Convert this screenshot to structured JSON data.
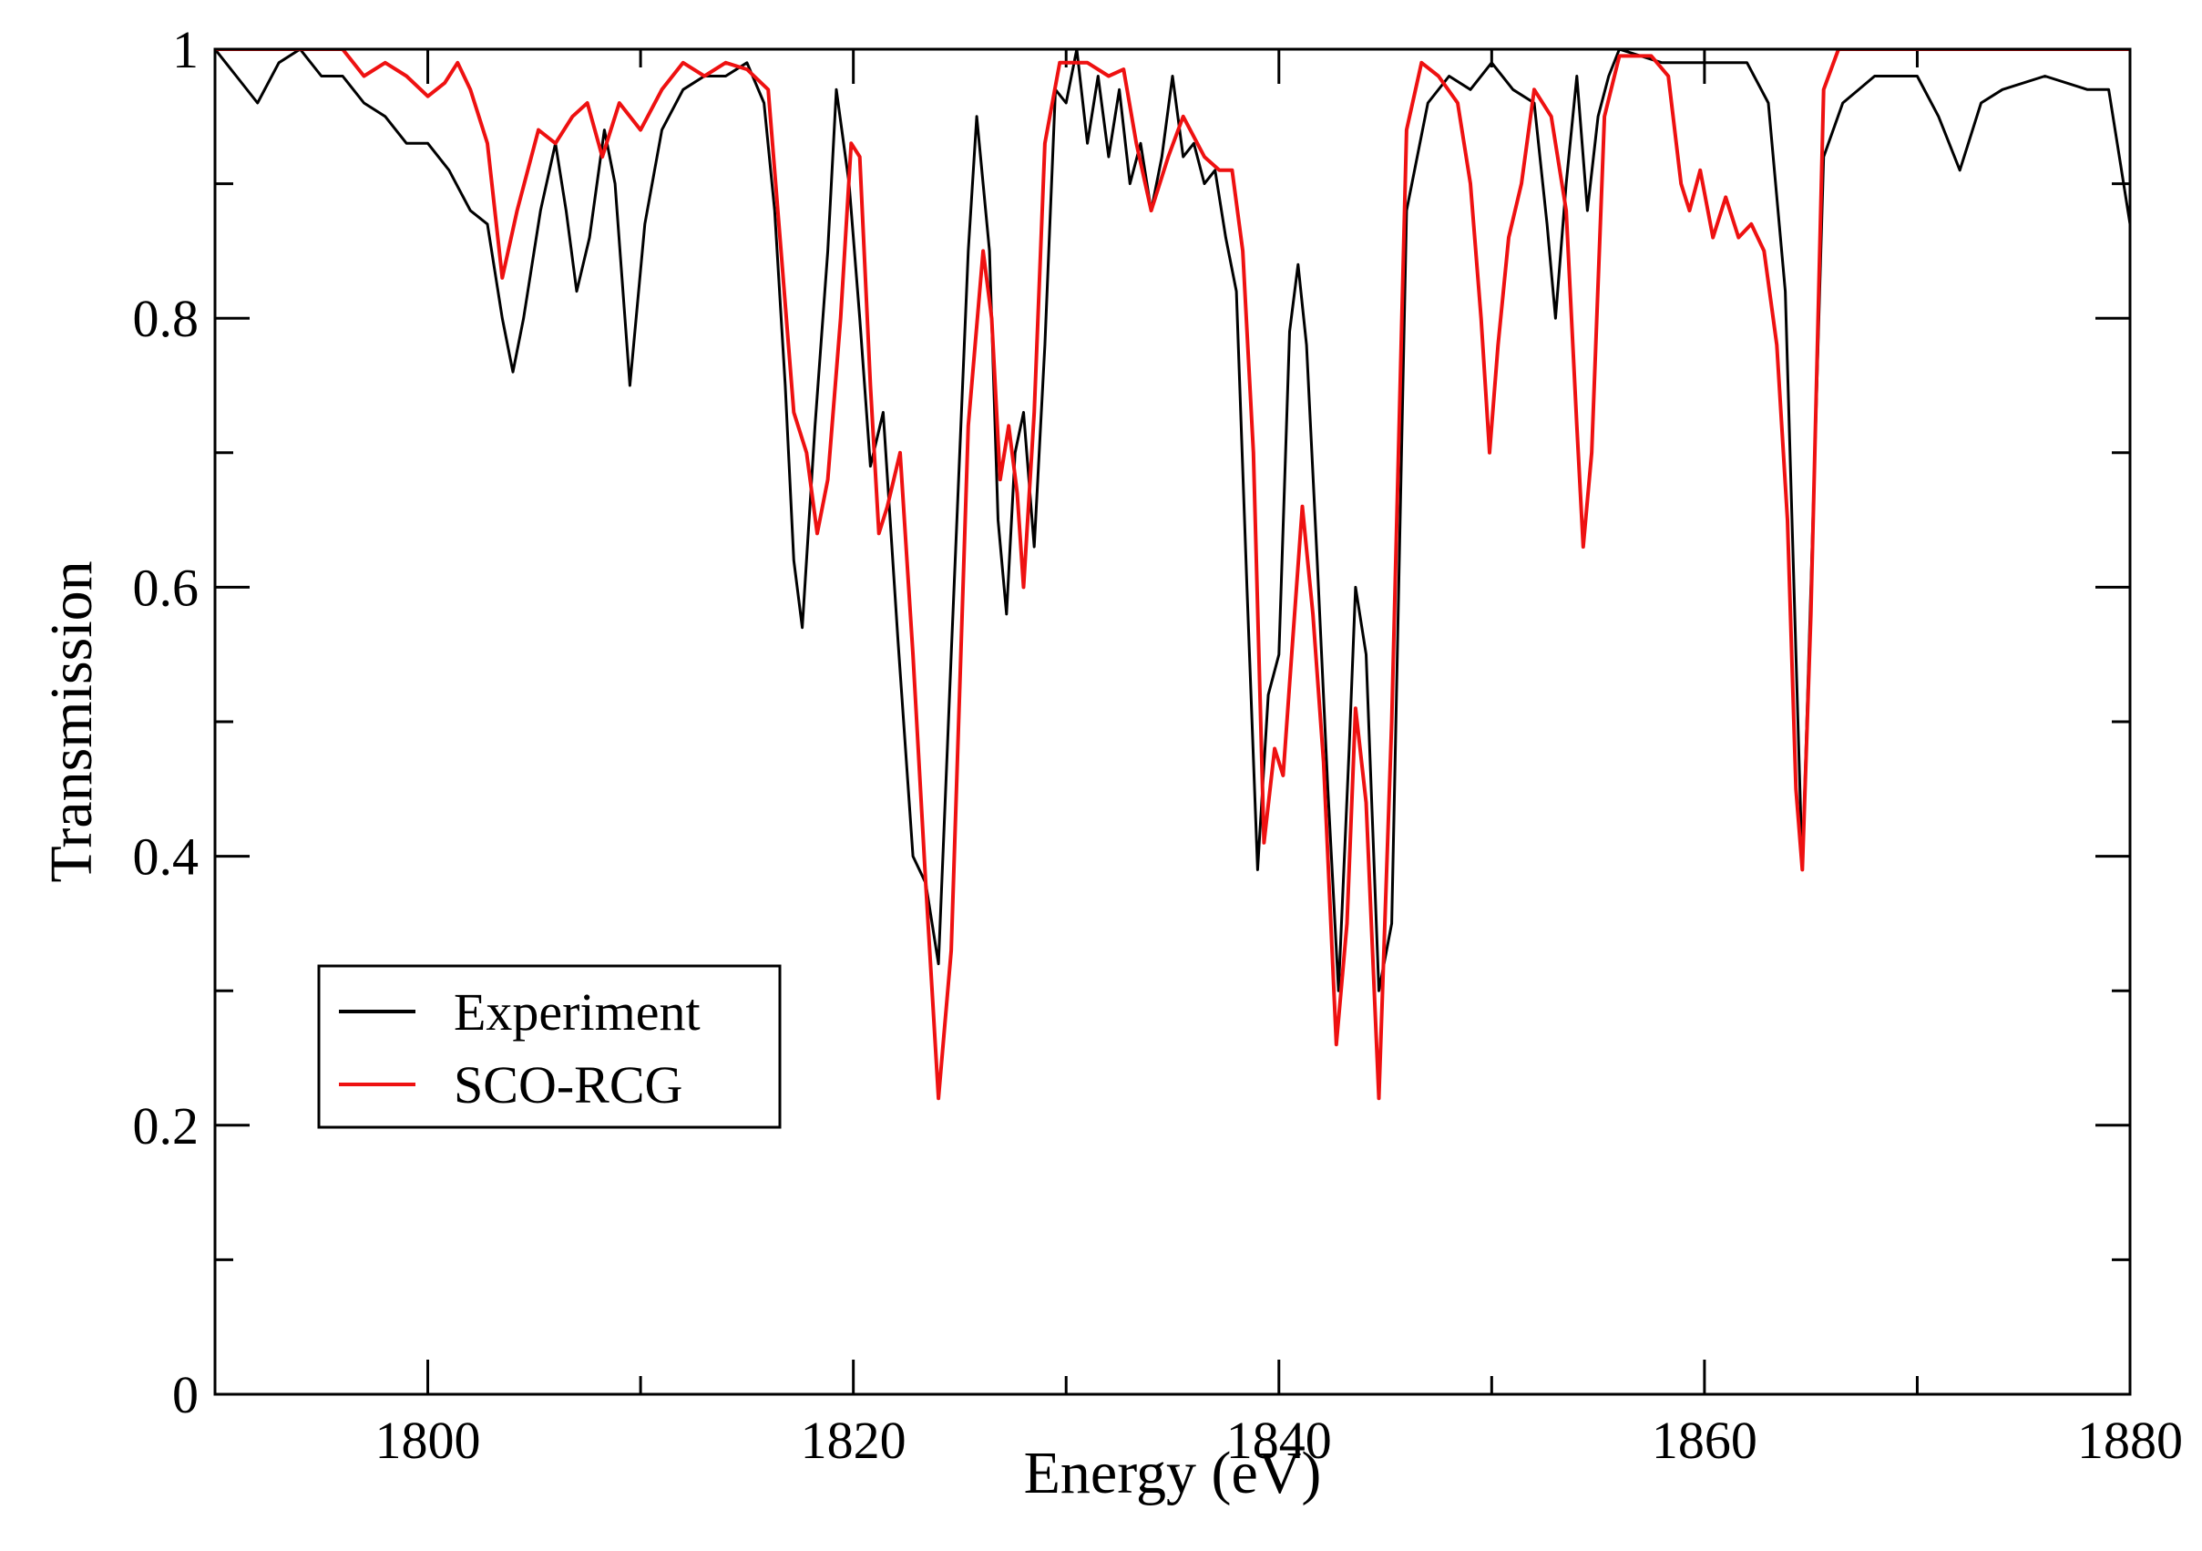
{
  "chart_data": {
    "type": "line",
    "title": "",
    "xlabel": "Energy (eV)",
    "ylabel": "Transmission",
    "xlim": [
      1790,
      1880
    ],
    "ylim": [
      0,
      1
    ],
    "x_ticks": [
      1800,
      1820,
      1840,
      1860,
      1880
    ],
    "x_tick_labels": [
      "1800",
      "1820",
      "1840",
      "1860",
      "1880"
    ],
    "y_ticks": [
      0,
      0.2,
      0.4,
      0.6,
      0.8,
      1
    ],
    "y_tick_labels": [
      "0",
      "0.2",
      "0.4",
      "0.6",
      "0.8",
      "1"
    ],
    "grid": false,
    "legend_position": "bottom-left",
    "series": [
      {
        "name": "Experiment",
        "color": "#000000",
        "points": [
          [
            1790,
            1.0
          ],
          [
            1791,
            0.98
          ],
          [
            1792,
            0.96
          ],
          [
            1793,
            0.99
          ],
          [
            1794,
            1.0
          ],
          [
            1795,
            0.98
          ],
          [
            1796,
            0.98
          ],
          [
            1797,
            0.96
          ],
          [
            1798,
            0.95
          ],
          [
            1799,
            0.93
          ],
          [
            1800,
            0.93
          ],
          [
            1801,
            0.91
          ],
          [
            1802,
            0.88
          ],
          [
            1802.8,
            0.87
          ],
          [
            1803.5,
            0.8
          ],
          [
            1804,
            0.76
          ],
          [
            1804.5,
            0.8
          ],
          [
            1805.3,
            0.88
          ],
          [
            1806,
            0.93
          ],
          [
            1806.5,
            0.88
          ],
          [
            1807,
            0.82
          ],
          [
            1807.6,
            0.86
          ],
          [
            1808.3,
            0.94
          ],
          [
            1808.8,
            0.9
          ],
          [
            1809.5,
            0.75
          ],
          [
            1810.2,
            0.87
          ],
          [
            1811,
            0.94
          ],
          [
            1812,
            0.97
          ],
          [
            1813,
            0.98
          ],
          [
            1814,
            0.98
          ],
          [
            1815,
            0.99
          ],
          [
            1815.8,
            0.96
          ],
          [
            1816.3,
            0.88
          ],
          [
            1816.8,
            0.75
          ],
          [
            1817.2,
            0.62
          ],
          [
            1817.6,
            0.57
          ],
          [
            1818.2,
            0.72
          ],
          [
            1818.8,
            0.85
          ],
          [
            1819.2,
            0.97
          ],
          [
            1819.8,
            0.9
          ],
          [
            1820.3,
            0.8
          ],
          [
            1820.8,
            0.69
          ],
          [
            1821.4,
            0.73
          ],
          [
            1822.1,
            0.56
          ],
          [
            1822.8,
            0.4
          ],
          [
            1823.4,
            0.38
          ],
          [
            1824,
            0.32
          ],
          [
            1824.6,
            0.55
          ],
          [
            1825.4,
            0.85
          ],
          [
            1825.8,
            0.95
          ],
          [
            1826.4,
            0.85
          ],
          [
            1826.8,
            0.65
          ],
          [
            1827.2,
            0.58
          ],
          [
            1827.6,
            0.7
          ],
          [
            1828,
            0.73
          ],
          [
            1828.5,
            0.63
          ],
          [
            1829,
            0.78
          ],
          [
            1829.5,
            0.97
          ],
          [
            1830,
            0.96
          ],
          [
            1830.5,
            1.0
          ],
          [
            1831,
            0.93
          ],
          [
            1831.5,
            0.98
          ],
          [
            1832,
            0.92
          ],
          [
            1832.5,
            0.97
          ],
          [
            1833,
            0.9
          ],
          [
            1833.5,
            0.93
          ],
          [
            1834,
            0.88
          ],
          [
            1834.5,
            0.92
          ],
          [
            1835,
            0.98
          ],
          [
            1835.5,
            0.92
          ],
          [
            1836,
            0.93
          ],
          [
            1836.5,
            0.9
          ],
          [
            1837,
            0.91
          ],
          [
            1837.5,
            0.86
          ],
          [
            1838,
            0.82
          ],
          [
            1838.5,
            0.6
          ],
          [
            1839,
            0.39
          ],
          [
            1839.5,
            0.52
          ],
          [
            1840,
            0.55
          ],
          [
            1840.5,
            0.79
          ],
          [
            1840.9,
            0.84
          ],
          [
            1841.3,
            0.78
          ],
          [
            1841.8,
            0.62
          ],
          [
            1842.3,
            0.45
          ],
          [
            1842.8,
            0.3
          ],
          [
            1843.3,
            0.48
          ],
          [
            1843.6,
            0.6
          ],
          [
            1844.1,
            0.55
          ],
          [
            1844.7,
            0.3
          ],
          [
            1845.3,
            0.35
          ],
          [
            1846,
            0.88
          ],
          [
            1847,
            0.96
          ],
          [
            1848,
            0.98
          ],
          [
            1849,
            0.97
          ],
          [
            1850,
            0.99
          ],
          [
            1851,
            0.97
          ],
          [
            1852,
            0.96
          ],
          [
            1852.6,
            0.87
          ],
          [
            1853,
            0.8
          ],
          [
            1853.5,
            0.9
          ],
          [
            1854,
            0.98
          ],
          [
            1854.5,
            0.88
          ],
          [
            1855,
            0.95
          ],
          [
            1855.5,
            0.98
          ],
          [
            1856,
            1.0
          ],
          [
            1858,
            0.99
          ],
          [
            1860,
            0.99
          ],
          [
            1862,
            0.99
          ],
          [
            1863,
            0.96
          ],
          [
            1863.8,
            0.82
          ],
          [
            1864.3,
            0.55
          ],
          [
            1864.6,
            0.39
          ],
          [
            1865,
            0.6
          ],
          [
            1865.6,
            0.92
          ],
          [
            1866.5,
            0.96
          ],
          [
            1868,
            0.98
          ],
          [
            1870,
            0.98
          ],
          [
            1871,
            0.95
          ],
          [
            1872,
            0.91
          ],
          [
            1873,
            0.96
          ],
          [
            1874,
            0.97
          ],
          [
            1876,
            0.98
          ],
          [
            1878,
            0.97
          ],
          [
            1879,
            0.97
          ],
          [
            1880,
            0.87
          ]
        ]
      },
      {
        "name": "SCO-RCG",
        "color": "#ee1111",
        "points": [
          [
            1790,
            1.0
          ],
          [
            1794,
            1.0
          ],
          [
            1796,
            1.0
          ],
          [
            1797,
            0.98
          ],
          [
            1798,
            0.99
          ],
          [
            1799,
            0.98
          ],
          [
            1800,
            0.965
          ],
          [
            1800.8,
            0.975
          ],
          [
            1801.4,
            0.99
          ],
          [
            1802,
            0.97
          ],
          [
            1802.8,
            0.93
          ],
          [
            1803.5,
            0.83
          ],
          [
            1804.2,
            0.88
          ],
          [
            1805.2,
            0.94
          ],
          [
            1806,
            0.93
          ],
          [
            1806.8,
            0.95
          ],
          [
            1807.5,
            0.96
          ],
          [
            1808.2,
            0.92
          ],
          [
            1809,
            0.96
          ],
          [
            1810,
            0.94
          ],
          [
            1811,
            0.97
          ],
          [
            1812,
            0.99
          ],
          [
            1813,
            0.98
          ],
          [
            1814,
            0.99
          ],
          [
            1815,
            0.985
          ],
          [
            1816,
            0.97
          ],
          [
            1816.6,
            0.85
          ],
          [
            1817.2,
            0.73
          ],
          [
            1817.8,
            0.7
          ],
          [
            1818.3,
            0.64
          ],
          [
            1818.8,
            0.68
          ],
          [
            1819.4,
            0.8
          ],
          [
            1819.9,
            0.93
          ],
          [
            1820.3,
            0.92
          ],
          [
            1820.8,
            0.75
          ],
          [
            1821.2,
            0.64
          ],
          [
            1821.6,
            0.66
          ],
          [
            1822.2,
            0.7
          ],
          [
            1822.8,
            0.55
          ],
          [
            1823.4,
            0.38
          ],
          [
            1824,
            0.22
          ],
          [
            1824.6,
            0.33
          ],
          [
            1825.4,
            0.72
          ],
          [
            1826.1,
            0.85
          ],
          [
            1826.5,
            0.8
          ],
          [
            1826.9,
            0.68
          ],
          [
            1827.3,
            0.72
          ],
          [
            1827.7,
            0.67
          ],
          [
            1828,
            0.6
          ],
          [
            1828.5,
            0.73
          ],
          [
            1829,
            0.93
          ],
          [
            1829.7,
            0.99
          ],
          [
            1831,
            0.99
          ],
          [
            1832,
            0.98
          ],
          [
            1832.7,
            0.985
          ],
          [
            1833.3,
            0.93
          ],
          [
            1834,
            0.88
          ],
          [
            1834.8,
            0.92
          ],
          [
            1835.5,
            0.95
          ],
          [
            1836.5,
            0.92
          ],
          [
            1837.2,
            0.91
          ],
          [
            1837.8,
            0.91
          ],
          [
            1838.3,
            0.85
          ],
          [
            1838.8,
            0.7
          ],
          [
            1839.3,
            0.41
          ],
          [
            1839.8,
            0.48
          ],
          [
            1840.2,
            0.46
          ],
          [
            1840.6,
            0.55
          ],
          [
            1841.1,
            0.66
          ],
          [
            1841.6,
            0.58
          ],
          [
            1842.1,
            0.47
          ],
          [
            1842.7,
            0.26
          ],
          [
            1843.2,
            0.35
          ],
          [
            1843.6,
            0.51
          ],
          [
            1844.1,
            0.44
          ],
          [
            1844.7,
            0.22
          ],
          [
            1845.3,
            0.5
          ],
          [
            1846,
            0.94
          ],
          [
            1846.7,
            0.99
          ],
          [
            1847.5,
            0.98
          ],
          [
            1848.4,
            0.96
          ],
          [
            1849,
            0.9
          ],
          [
            1849.5,
            0.8
          ],
          [
            1849.9,
            0.7
          ],
          [
            1850.3,
            0.78
          ],
          [
            1850.8,
            0.86
          ],
          [
            1851.4,
            0.9
          ],
          [
            1852,
            0.97
          ],
          [
            1852.8,
            0.95
          ],
          [
            1853.5,
            0.88
          ],
          [
            1854,
            0.72
          ],
          [
            1854.3,
            0.63
          ],
          [
            1854.7,
            0.7
          ],
          [
            1855.3,
            0.95
          ],
          [
            1856,
            0.995
          ],
          [
            1857.5,
            0.995
          ],
          [
            1858.3,
            0.98
          ],
          [
            1858.9,
            0.9
          ],
          [
            1859.3,
            0.88
          ],
          [
            1859.8,
            0.91
          ],
          [
            1860.4,
            0.86
          ],
          [
            1861,
            0.89
          ],
          [
            1861.6,
            0.86
          ],
          [
            1862.2,
            0.87
          ],
          [
            1862.8,
            0.85
          ],
          [
            1863.4,
            0.78
          ],
          [
            1863.9,
            0.65
          ],
          [
            1864.3,
            0.45
          ],
          [
            1864.6,
            0.39
          ],
          [
            1865,
            0.58
          ],
          [
            1865.6,
            0.97
          ],
          [
            1866.3,
            1.0
          ],
          [
            1870,
            1.0
          ],
          [
            1880,
            1.0
          ]
        ]
      }
    ]
  }
}
